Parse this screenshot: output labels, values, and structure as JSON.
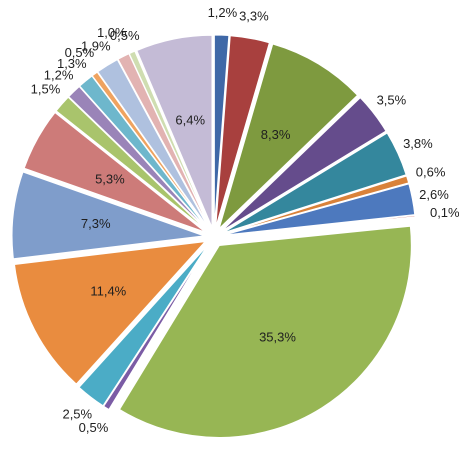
{
  "chart_data": {
    "type": "pie",
    "exploded": true,
    "start_angle_deg": 0,
    "direction": "clockwise",
    "slices": [
      {
        "label": "1,2%",
        "value": 1.2,
        "color": "#3F68A7"
      },
      {
        "label": "3,3%",
        "value": 3.3,
        "color": "#A8403E"
      },
      {
        "label": "8,3%",
        "value": 8.3,
        "color": "#7E9A3F"
      },
      {
        "label": "3,5%",
        "value": 3.5,
        "color": "#654C8C"
      },
      {
        "label": "3,8%",
        "value": 3.8,
        "color": "#34879D"
      },
      {
        "label": "0,6%",
        "value": 0.6,
        "color": "#D9823A"
      },
      {
        "label": "2,6%",
        "value": 2.6,
        "color": "#4D79BE"
      },
      {
        "label": "0,1%",
        "value": 0.1,
        "color": "#C0504D"
      },
      {
        "label": "35,3%",
        "value": 35.3,
        "color": "#97B654"
      },
      {
        "label": "0,5%",
        "value": 0.5,
        "color": "#7B5CA5"
      },
      {
        "label": "2,5%",
        "value": 2.5,
        "color": "#4BACC6"
      },
      {
        "label": "11,4%",
        "value": 11.4,
        "color": "#E98C3F"
      },
      {
        "label": "7,3%",
        "value": 7.3,
        "color": "#7F9DCB"
      },
      {
        "label": "5,3%",
        "value": 5.3,
        "color": "#CD7B79"
      },
      {
        "label": "1,5%",
        "value": 1.5,
        "color": "#A9C46C"
      },
      {
        "label": "1,2%",
        "value": 1.2,
        "color": "#9A84B8"
      },
      {
        "label": "1,3%",
        "value": 1.3,
        "color": "#6EB7CC"
      },
      {
        "label": "0,5%",
        "value": 0.5,
        "color": "#EFA360"
      },
      {
        "label": "1,9%",
        "value": 1.9,
        "color": "#AFC1DF"
      },
      {
        "label": "1,0%",
        "value": 1.0,
        "color": "#E2B3B2"
      },
      {
        "label": "0,5%",
        "value": 0.5,
        "color": "#CFDDB1"
      },
      {
        "label": "6,4%",
        "value": 6.4,
        "color": "#C4BBD6"
      }
    ]
  }
}
